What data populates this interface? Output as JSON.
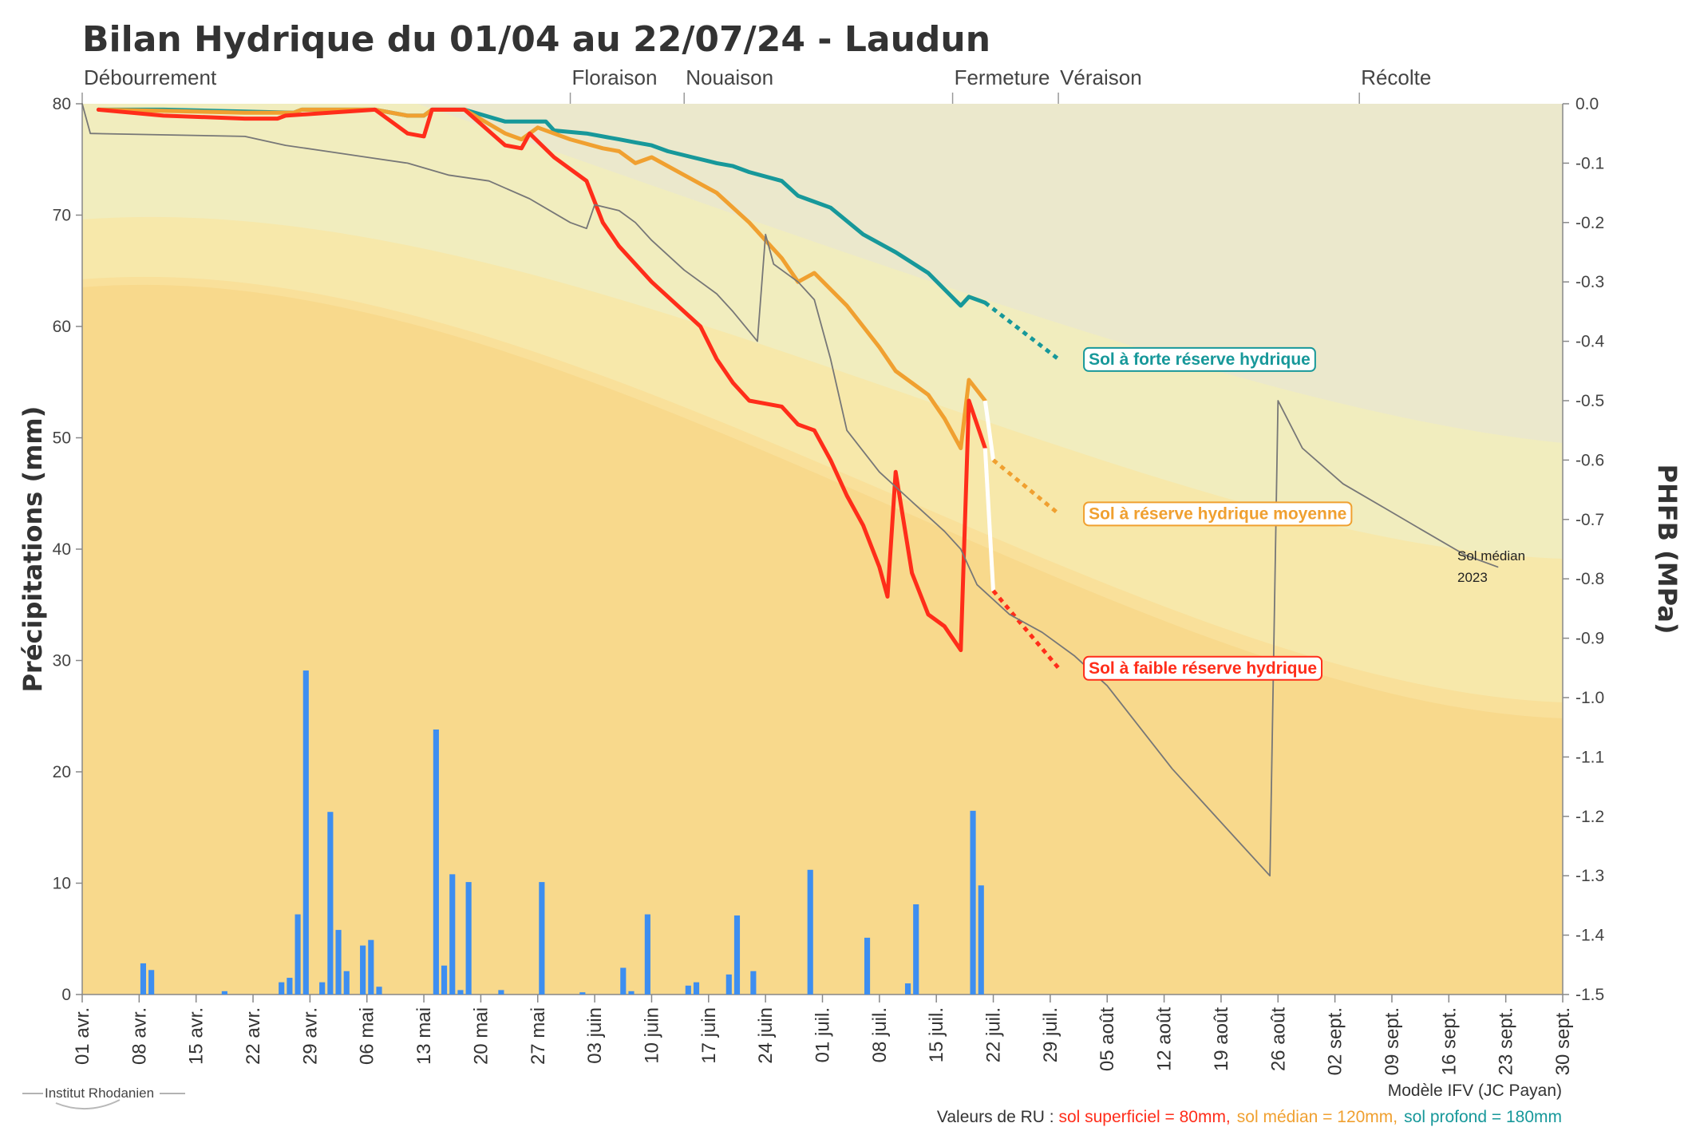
{
  "chart_data": {
    "type": "line",
    "title": "Bilan Hydrique du 01/04 au 22/07/24 - Laudun",
    "ylabel_left": "Précipitations (mm)",
    "ylabel_right": "PHFB (MPa)",
    "ylim_left": [
      0,
      80
    ],
    "ylim_right": [
      -1.5,
      0.0
    ],
    "y_ticks_left": [
      "0",
      "10",
      "20",
      "30",
      "40",
      "50",
      "60",
      "70",
      "80"
    ],
    "y_ticks_right": [
      "0.0",
      "-0.1",
      "-0.2",
      "-0.3",
      "-0.4",
      "-0.5",
      "-0.6",
      "-0.7",
      "-0.8",
      "-0.9",
      "-1.0",
      "-1.1",
      "-1.2",
      "-1.3",
      "-1.4",
      "-1.5"
    ],
    "x_ticks": [
      "01 avr.",
      "08 avr.",
      "15 avr.",
      "22 avr.",
      "29 avr.",
      "06 mai",
      "13 mai",
      "20 mai",
      "27 mai",
      "03 juin",
      "10 juin",
      "17 juin",
      "24 juin",
      "01 juil.",
      "08 juil.",
      "15 juil.",
      "22 juil.",
      "29 juil.",
      "05 août",
      "12 août",
      "19 août",
      "26 août",
      "02 sept.",
      "09 sept.",
      "16 sept.",
      "23 sept.",
      "30 sept."
    ],
    "x_range_days": [
      0,
      182
    ],
    "stages": [
      {
        "label": "Débourrement",
        "day": 0
      },
      {
        "label": "Floraison",
        "day": 60
      },
      {
        "label": "Nouaison",
        "day": 74
      },
      {
        "label": "Fermeture",
        "day": 107
      },
      {
        "label": "Véraison",
        "day": 120
      },
      {
        "label": "Récolte",
        "day": 157
      }
    ],
    "precipitation_mm": [
      {
        "day": 7.5,
        "value": 2.8
      },
      {
        "day": 8.5,
        "value": 2.2
      },
      {
        "day": 17.5,
        "value": 0.3
      },
      {
        "day": 24.5,
        "value": 1.1
      },
      {
        "day": 25.5,
        "value": 1.5
      },
      {
        "day": 26.5,
        "value": 7.2
      },
      {
        "day": 27.5,
        "value": 29.1
      },
      {
        "day": 29.5,
        "value": 1.1
      },
      {
        "day": 30.5,
        "value": 16.4
      },
      {
        "day": 31.5,
        "value": 5.8
      },
      {
        "day": 32.5,
        "value": 2.1
      },
      {
        "day": 34.5,
        "value": 4.4
      },
      {
        "day": 35.5,
        "value": 4.9
      },
      {
        "day": 36.5,
        "value": 0.7
      },
      {
        "day": 43.5,
        "value": 23.8
      },
      {
        "day": 44.5,
        "value": 2.6
      },
      {
        "day": 45.5,
        "value": 10.8
      },
      {
        "day": 46.5,
        "value": 0.4
      },
      {
        "day": 47.5,
        "value": 10.1
      },
      {
        "day": 51.5,
        "value": 0.4
      },
      {
        "day": 56.5,
        "value": 10.1
      },
      {
        "day": 61.5,
        "value": 0.2
      },
      {
        "day": 66.5,
        "value": 2.4
      },
      {
        "day": 67.5,
        "value": 0.3
      },
      {
        "day": 69.5,
        "value": 7.2
      },
      {
        "day": 74.5,
        "value": 0.8
      },
      {
        "day": 75.5,
        "value": 1.1
      },
      {
        "day": 79.5,
        "value": 1.8
      },
      {
        "day": 80.5,
        "value": 7.1
      },
      {
        "day": 82.5,
        "value": 2.1
      },
      {
        "day": 89.5,
        "value": 11.2
      },
      {
        "day": 96.5,
        "value": 5.1
      },
      {
        "day": 101.5,
        "value": 1.0
      },
      {
        "day": 102.5,
        "value": 8.1
      },
      {
        "day": 109.5,
        "value": 16.5
      },
      {
        "day": 110.5,
        "value": 9.8
      }
    ],
    "series": [
      {
        "name": "Sol à forte réserve hydrique",
        "color": "#17989a",
        "points": [
          [
            2,
            -0.01
          ],
          [
            10,
            -0.01
          ],
          [
            20,
            -0.013
          ],
          [
            26,
            -0.015
          ],
          [
            27,
            -0.01
          ],
          [
            36,
            -0.01
          ],
          [
            40,
            -0.02
          ],
          [
            42,
            -0.02
          ],
          [
            43,
            -0.01
          ],
          [
            47,
            -0.01
          ],
          [
            52,
            -0.03
          ],
          [
            57,
            -0.03
          ],
          [
            58,
            -0.045
          ],
          [
            62,
            -0.05
          ],
          [
            66,
            -0.06
          ],
          [
            68,
            -0.065
          ],
          [
            70,
            -0.07
          ],
          [
            72,
            -0.08
          ],
          [
            75,
            -0.09
          ],
          [
            78,
            -0.1
          ],
          [
            80,
            -0.105
          ],
          [
            82,
            -0.115
          ],
          [
            86,
            -0.13
          ],
          [
            88,
            -0.155
          ],
          [
            92,
            -0.175
          ],
          [
            96,
            -0.22
          ],
          [
            100,
            -0.25
          ],
          [
            104,
            -0.285
          ],
          [
            108,
            -0.34
          ],
          [
            109,
            -0.325
          ],
          [
            111,
            -0.335
          ]
        ],
        "forecast": [
          [
            111,
            -0.335
          ],
          [
            120,
            -0.43
          ]
        ]
      },
      {
        "name": "Sol à réserve hydrique moyenne",
        "color": "#f0a030",
        "points": [
          [
            2,
            -0.01
          ],
          [
            10,
            -0.012
          ],
          [
            20,
            -0.015
          ],
          [
            26,
            -0.015
          ],
          [
            27,
            -0.01
          ],
          [
            36,
            -0.01
          ],
          [
            40,
            -0.02
          ],
          [
            42,
            -0.02
          ],
          [
            43,
            -0.01
          ],
          [
            47,
            -0.01
          ],
          [
            52,
            -0.05
          ],
          [
            54,
            -0.06
          ],
          [
            56,
            -0.04
          ],
          [
            60,
            -0.06
          ],
          [
            64,
            -0.075
          ],
          [
            66,
            -0.08
          ],
          [
            68,
            -0.1
          ],
          [
            70,
            -0.09
          ],
          [
            74,
            -0.12
          ],
          [
            78,
            -0.15
          ],
          [
            82,
            -0.2
          ],
          [
            86,
            -0.26
          ],
          [
            88,
            -0.3
          ],
          [
            90,
            -0.285
          ],
          [
            94,
            -0.34
          ],
          [
            98,
            -0.41
          ],
          [
            100,
            -0.45
          ],
          [
            102,
            -0.47
          ],
          [
            104,
            -0.49
          ],
          [
            106,
            -0.53
          ],
          [
            108,
            -0.58
          ],
          [
            109,
            -0.465
          ],
          [
            111,
            -0.5
          ]
        ],
        "forecast": [
          [
            111,
            -0.5
          ],
          [
            112,
            -0.6
          ],
          [
            120,
            -0.69
          ]
        ]
      },
      {
        "name": "Sol à faible réserve hydrique",
        "color": "#ff2d1a",
        "points": [
          [
            2,
            -0.01
          ],
          [
            10,
            -0.02
          ],
          [
            20,
            -0.025
          ],
          [
            24,
            -0.025
          ],
          [
            25,
            -0.02
          ],
          [
            36,
            -0.01
          ],
          [
            40,
            -0.05
          ],
          [
            42,
            -0.055
          ],
          [
            43,
            -0.01
          ],
          [
            47,
            -0.01
          ],
          [
            52,
            -0.07
          ],
          [
            54,
            -0.075
          ],
          [
            55,
            -0.05
          ],
          [
            58,
            -0.09
          ],
          [
            62,
            -0.13
          ],
          [
            64,
            -0.2
          ],
          [
            66,
            -0.24
          ],
          [
            70,
            -0.3
          ],
          [
            74,
            -0.35
          ],
          [
            76,
            -0.375
          ],
          [
            78,
            -0.43
          ],
          [
            80,
            -0.47
          ],
          [
            82,
            -0.5
          ],
          [
            86,
            -0.51
          ],
          [
            88,
            -0.54
          ],
          [
            90,
            -0.55
          ],
          [
            92,
            -0.6
          ],
          [
            94,
            -0.66
          ],
          [
            96,
            -0.71
          ],
          [
            98,
            -0.78
          ],
          [
            99,
            -0.83
          ],
          [
            100,
            -0.62
          ],
          [
            102,
            -0.79
          ],
          [
            104,
            -0.86
          ],
          [
            106,
            -0.88
          ],
          [
            108,
            -0.92
          ],
          [
            109,
            -0.5
          ],
          [
            111,
            -0.58
          ]
        ],
        "forecast": [
          [
            111,
            -0.58
          ],
          [
            112,
            -0.82
          ],
          [
            120,
            -0.95
          ]
        ]
      },
      {
        "name": "Sol médian 2023",
        "color": "#777777",
        "points": [
          [
            0,
            0.0
          ],
          [
            1,
            -0.05
          ],
          [
            20,
            -0.055
          ],
          [
            25,
            -0.07
          ],
          [
            30,
            -0.08
          ],
          [
            35,
            -0.09
          ],
          [
            40,
            -0.1
          ],
          [
            45,
            -0.12
          ],
          [
            50,
            -0.13
          ],
          [
            55,
            -0.16
          ],
          [
            60,
            -0.2
          ],
          [
            62,
            -0.21
          ],
          [
            63,
            -0.17
          ],
          [
            66,
            -0.18
          ],
          [
            68,
            -0.2
          ],
          [
            70,
            -0.23
          ],
          [
            74,
            -0.28
          ],
          [
            78,
            -0.32
          ],
          [
            80,
            -0.35
          ],
          [
            83,
            -0.4
          ],
          [
            84,
            -0.22
          ],
          [
            85,
            -0.27
          ],
          [
            88,
            -0.3
          ],
          [
            90,
            -0.33
          ],
          [
            92,
            -0.43
          ],
          [
            94,
            -0.55
          ],
          [
            98,
            -0.62
          ],
          [
            102,
            -0.67
          ],
          [
            106,
            -0.72
          ],
          [
            108,
            -0.75
          ],
          [
            110,
            -0.81
          ],
          [
            114,
            -0.86
          ],
          [
            118,
            -0.89
          ],
          [
            122,
            -0.93
          ],
          [
            126,
            -0.98
          ],
          [
            130,
            -1.05
          ],
          [
            134,
            -1.12
          ],
          [
            138,
            -1.18
          ],
          [
            142,
            -1.24
          ],
          [
            146,
            -1.3
          ],
          [
            147,
            -0.5
          ],
          [
            150,
            -0.58
          ],
          [
            155,
            -0.64
          ],
          [
            160,
            -0.68
          ],
          [
            165,
            -0.72
          ],
          [
            170,
            -0.76
          ],
          [
            174,
            -0.78
          ]
        ]
      }
    ],
    "legend": [
      {
        "label": "Sol à forte réserve hydrique",
        "color": "#17989a"
      },
      {
        "label": "Sol à réserve hydrique moyenne",
        "color": "#f0a030"
      },
      {
        "label": "Sol à faible réserve hydrique",
        "color": "#ff2d1a"
      }
    ],
    "annotation_median": [
      "Sol médian",
      "2023"
    ]
  },
  "footer": {
    "model": "Modèle IFV (JC Payan)",
    "ru_prefix": "Valeurs de RU : ",
    "ru_low": "sol superficiel = 80mm,",
    "ru_mid": "sol médian = 120mm,",
    "ru_high": "sol profond = 180mm",
    "logo": "Institut Rhodanien"
  },
  "colors": {
    "low": "#ff2d1a",
    "mid": "#f0a030",
    "high": "#17989a",
    "bars": "#3d8ef0",
    "median": "#777777"
  }
}
